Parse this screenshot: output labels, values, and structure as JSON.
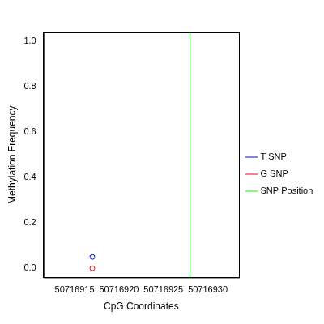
{
  "chart_data": {
    "type": "scatter",
    "x_label": "CpG Coordinates",
    "y_label": "Methylation Frequency",
    "series": [
      {
        "name": "T SNP",
        "color": "#0000ff",
        "type": "scatter",
        "marker": "circle",
        "x": [
          50716917
        ],
        "values": [
          0.05
        ]
      },
      {
        "name": "G SNP",
        "color": "#ff0000",
        "type": "scatter",
        "marker": "circle",
        "x": [
          50716917
        ],
        "values": [
          0.0
        ]
      },
      {
        "name": "SNP Position",
        "color": "#00ff00",
        "type": "vline",
        "line_style": "solid",
        "x": [
          50716928
        ]
      }
    ],
    "xlim": [
      50716911.5,
      50716933.5
    ],
    "xticks": [
      50716915,
      50716920,
      50716925,
      50716930
    ],
    "ylim": [
      -0.04,
      1.04
    ],
    "yticks": [
      {
        "value": 0,
        "label": "0.0"
      },
      0.2,
      0.4,
      0.6,
      0.8,
      {
        "value": 1,
        "label": "1.0"
      }
    ],
    "grid": false,
    "legend": "right"
  }
}
